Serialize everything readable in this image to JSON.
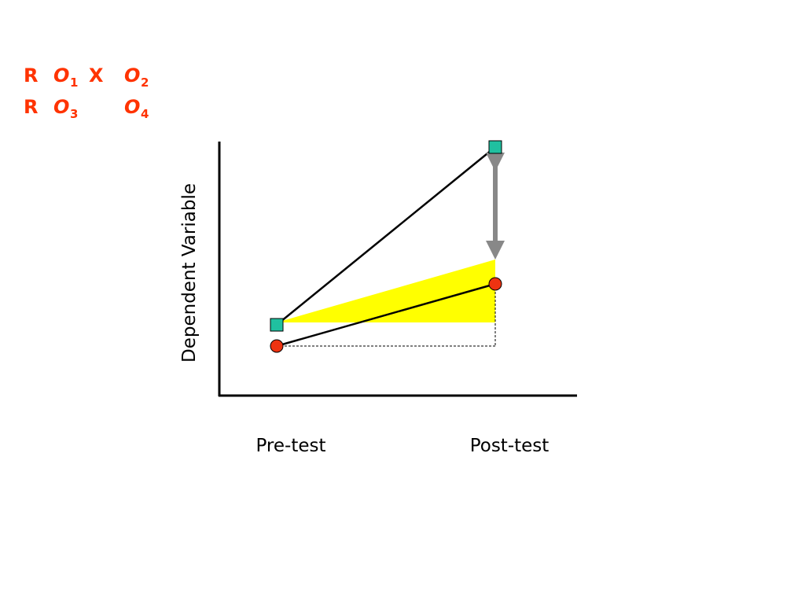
{
  "design": {
    "rows": [
      {
        "group": "R",
        "pre": {
          "letter": "O",
          "sub": "1"
        },
        "treatment": "X",
        "post": {
          "letter": "O",
          "sub": "2"
        }
      },
      {
        "group": "R",
        "pre": {
          "letter": "O",
          "sub": "3"
        },
        "post": {
          "letter": "O",
          "sub": "4"
        }
      }
    ]
  },
  "diagram": {
    "y_axis_label": "Dependent Variable",
    "x_labels": [
      "Pre-test",
      "Post-test"
    ]
  }
}
